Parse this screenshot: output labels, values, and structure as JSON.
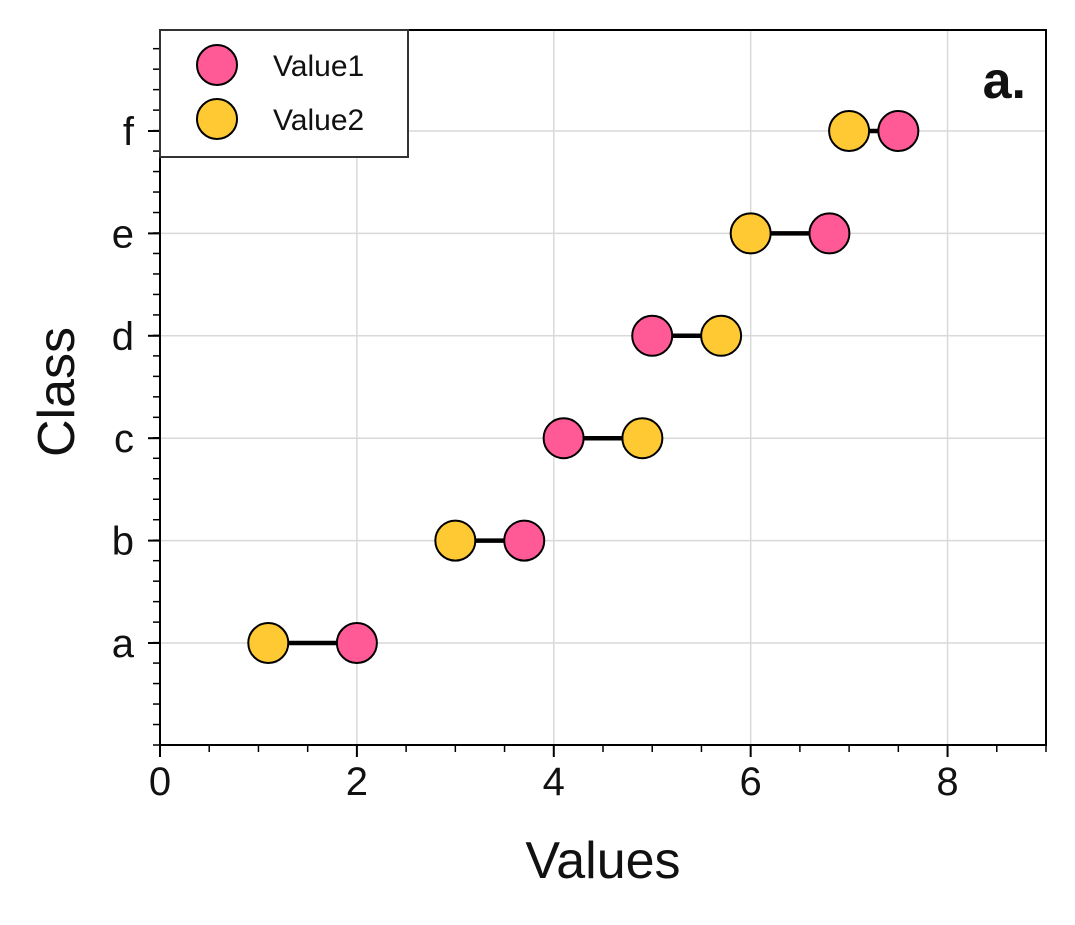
{
  "chart_data": {
    "type": "dumbbell",
    "panel_label": "a.",
    "xlabel": "Values",
    "ylabel": "Class",
    "xlim": [
      0,
      9
    ],
    "x_ticks": [
      0,
      2,
      4,
      6,
      8
    ],
    "x_minor_step": 0.5,
    "categories": [
      "a",
      "b",
      "c",
      "d",
      "e",
      "f"
    ],
    "series": [
      {
        "name": "Value1",
        "color": "#ff5a96",
        "values": [
          2.0,
          3.7,
          4.1,
          5.0,
          6.8,
          7.5
        ]
      },
      {
        "name": "Value2",
        "color": "#ffc933",
        "values": [
          1.1,
          3.0,
          4.9,
          5.7,
          6.0,
          7.0
        ]
      }
    ],
    "connector_color": "#000000",
    "grid": true,
    "legend_position": "top-left"
  }
}
